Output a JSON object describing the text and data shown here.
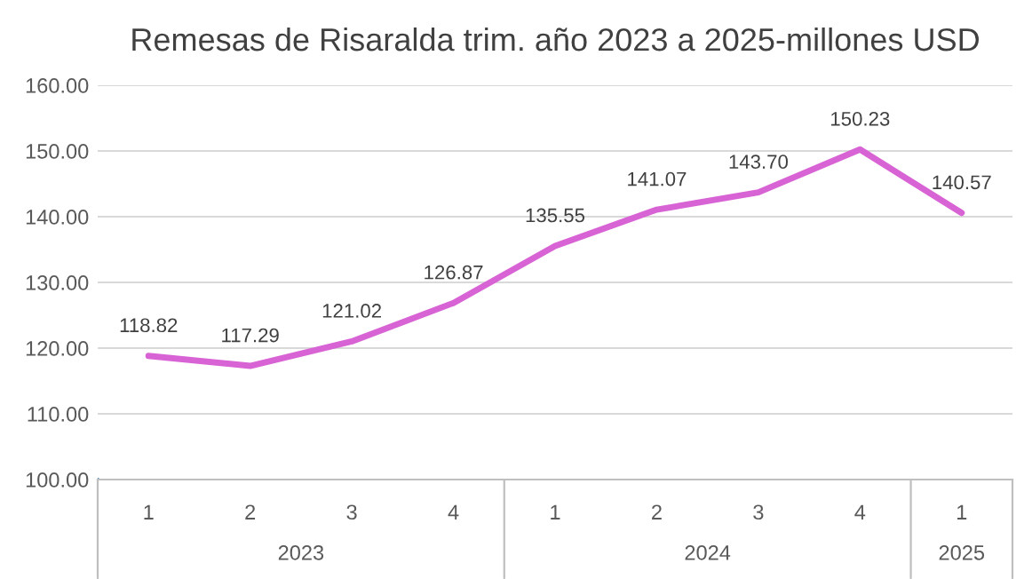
{
  "chart_data": {
    "type": "line",
    "title": "Remesas de Risaralda trim. año 2023 a 2025-millones USD",
    "categories": [
      "1",
      "2",
      "3",
      "4",
      "1",
      "2",
      "3",
      "4",
      "1"
    ],
    "series": [
      {
        "color": "#d863d4",
        "values": [
          118.82,
          117.29,
          121.02,
          126.87,
          135.55,
          141.07,
          143.7,
          150.23,
          140.57
        ],
        "value_labels": [
          "118.82",
          "117.29",
          "121.02",
          "126.87",
          "135.55",
          "141.07",
          "143.70",
          "150.23",
          "140.57"
        ]
      }
    ],
    "annotations": [
      "2023",
      "2024",
      "2025"
    ],
    "ylim": [
      100,
      160
    ],
    "yticks": [
      {
        "value": 100,
        "label": "100.00"
      },
      {
        "value": 110,
        "label": "110.00"
      },
      {
        "value": 120,
        "label": "120.00"
      },
      {
        "value": 130,
        "label": "130.00"
      },
      {
        "value": 140,
        "label": "140.00"
      },
      {
        "value": 150,
        "label": "150.00"
      },
      {
        "value": 160,
        "label": "160.00"
      }
    ],
    "grid": "y",
    "marker": "none",
    "line_style": "solid",
    "legend": false
  }
}
